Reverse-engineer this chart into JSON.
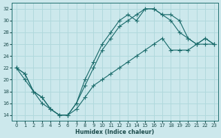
{
  "xlabel": "Humidex (Indice chaleur)",
  "bg_color": "#cce8ec",
  "grid_color": "#b0d8dc",
  "line_color": "#1a6b6b",
  "xlim": [
    -0.5,
    23.5
  ],
  "ylim": [
    13.0,
    33.0
  ],
  "xticks": [
    0,
    1,
    2,
    3,
    4,
    5,
    6,
    7,
    8,
    9,
    10,
    11,
    12,
    13,
    14,
    15,
    16,
    17,
    18,
    19,
    20,
    21,
    22,
    23
  ],
  "yticks": [
    14,
    16,
    18,
    20,
    22,
    24,
    26,
    28,
    30,
    32
  ],
  "curve1": {
    "x": [
      0,
      1,
      2,
      3,
      4,
      5,
      6,
      7,
      8,
      9,
      10,
      11,
      12,
      13,
      14,
      15,
      16,
      17,
      18,
      19,
      20,
      21,
      22,
      23
    ],
    "y": [
      22,
      21,
      18,
      17,
      15,
      14,
      14,
      16,
      20,
      23,
      26,
      28,
      30,
      31,
      30,
      32,
      32,
      31,
      31,
      30,
      27,
      26,
      27,
      26
    ]
  },
  "curve2": {
    "x": [
      0,
      1,
      2,
      3,
      4,
      5,
      6,
      7,
      8,
      9,
      10,
      11,
      12,
      13,
      14,
      15,
      16,
      17,
      18,
      19,
      20,
      21,
      22,
      23
    ],
    "y": [
      22,
      21,
      18,
      17,
      15,
      14,
      14,
      16,
      19,
      22,
      25,
      27,
      29,
      30,
      31,
      32,
      32,
      31,
      30,
      28,
      27,
      26,
      27,
      26
    ]
  },
  "curve3": {
    "x": [
      0,
      1,
      2,
      3,
      4,
      5,
      6,
      7,
      8,
      9,
      10,
      11,
      12,
      13,
      14,
      15,
      16,
      17,
      18,
      19,
      20,
      21,
      22,
      23
    ],
    "y": [
      22,
      20,
      18,
      16,
      15,
      14,
      14,
      15,
      17,
      19,
      20,
      21,
      22,
      23,
      24,
      25,
      26,
      27,
      25,
      25,
      25,
      26,
      26,
      26
    ]
  }
}
